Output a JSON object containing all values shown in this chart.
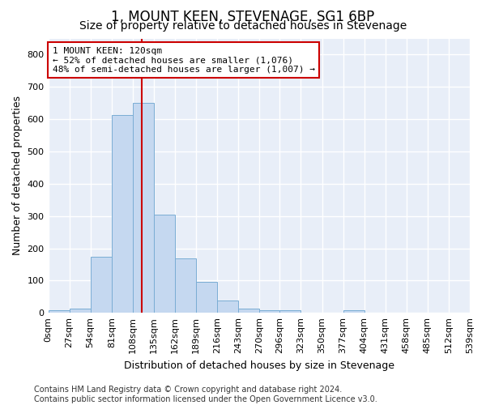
{
  "title": "1, MOUNT KEEN, STEVENAGE, SG1 6BP",
  "subtitle": "Size of property relative to detached houses in Stevenage",
  "xlabel": "Distribution of detached houses by size in Stevenage",
  "ylabel": "Number of detached properties",
  "bar_color": "#c5d8f0",
  "bar_edge_color": "#7aadd4",
  "background_color": "#e8eef8",
  "figure_color": "#ffffff",
  "grid_color": "#ffffff",
  "bin_edges": [
    0,
    27,
    54,
    81,
    108,
    135,
    162,
    189,
    216,
    243,
    270,
    296,
    323,
    350,
    377,
    404,
    431,
    458,
    485,
    512,
    539
  ],
  "bar_heights": [
    8,
    13,
    175,
    612,
    650,
    305,
    170,
    97,
    38,
    14,
    8,
    8,
    0,
    0,
    8,
    0,
    0,
    0,
    0,
    0
  ],
  "property_size": 120,
  "vline_color": "#cc0000",
  "annotation_line1": "1 MOUNT KEEN: 120sqm",
  "annotation_line2": "← 52% of detached houses are smaller (1,076)",
  "annotation_line3": "48% of semi-detached houses are larger (1,007) →",
  "annotation_box_color": "#ffffff",
  "annotation_box_edge": "#cc0000",
  "ylim": [
    0,
    850
  ],
  "yticks": [
    0,
    100,
    200,
    300,
    400,
    500,
    600,
    700,
    800
  ],
  "footer_text": "Contains HM Land Registry data © Crown copyright and database right 2024.\nContains public sector information licensed under the Open Government Licence v3.0.",
  "title_fontsize": 12,
  "subtitle_fontsize": 10,
  "xlabel_fontsize": 9,
  "ylabel_fontsize": 9,
  "tick_fontsize": 8,
  "annotation_fontsize": 8,
  "footer_fontsize": 7
}
